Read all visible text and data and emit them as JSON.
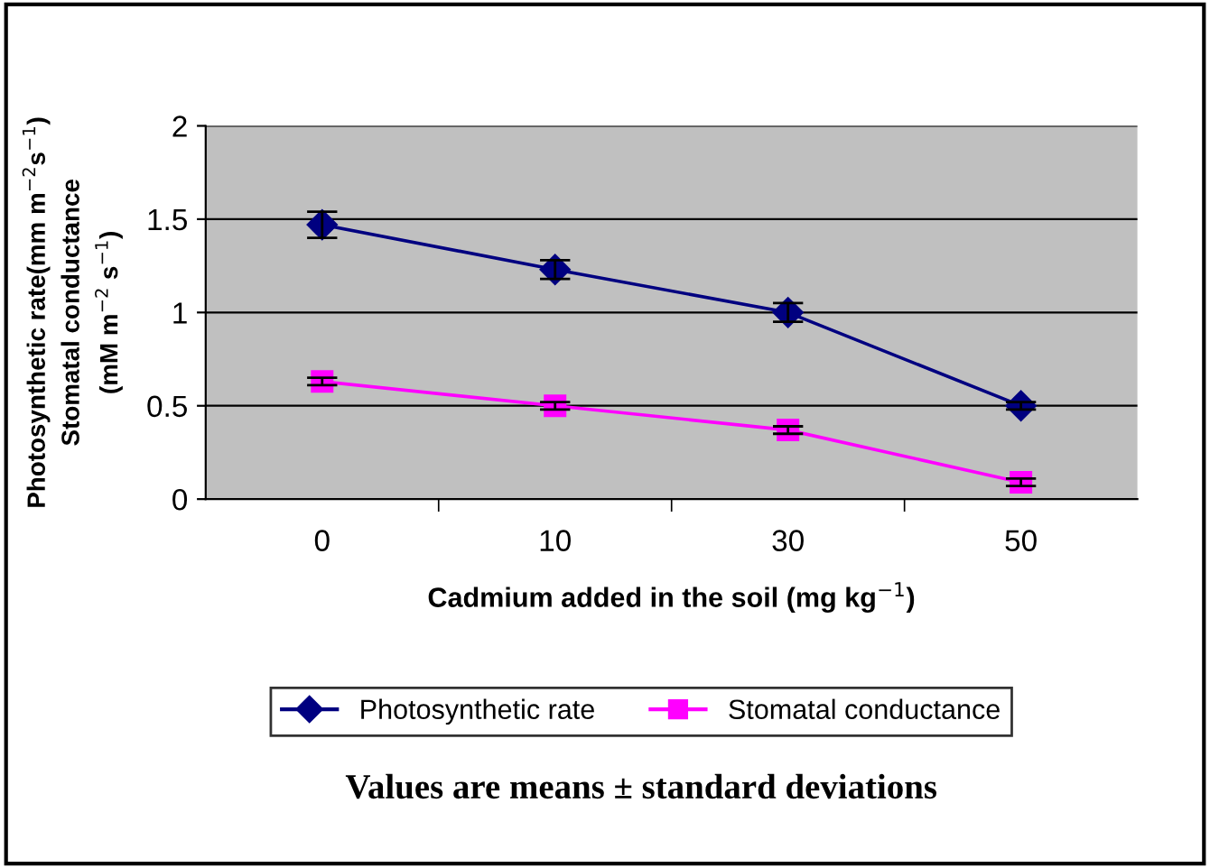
{
  "chart_data": {
    "type": "line",
    "xlabel": "Cadmium added in the soil (mg kg$^{−1}$)",
    "ylabel": "Photosynthetic rate(mm m$^{−2}$s$^{−1}$)\nStomatal conductance\n(mM m$^{−2}$ s$^{−1}$)",
    "categories": [
      "0",
      "10",
      "30",
      "50"
    ],
    "series": [
      {
        "name": "Photosynthetic rate",
        "color": "#000080",
        "marker": "diamond",
        "values": [
          1.47,
          1.23,
          1.0,
          0.5
        ],
        "errors": [
          0.07,
          0.05,
          0.05,
          0.02
        ]
      },
      {
        "name": "Stomatal conductance",
        "color": "#ff00ff",
        "marker": "square",
        "values": [
          0.63,
          0.5,
          0.37,
          0.09
        ],
        "errors": [
          0.02,
          0.02,
          0.02,
          0.02
        ]
      }
    ],
    "ylim": [
      0,
      2
    ],
    "yticks": [
      0,
      0.5,
      1,
      1.5,
      2
    ],
    "grid": "y",
    "legend": "bottom",
    "line_style": "solid",
    "annotations": [
      "Values are means ± standard deviations"
    ]
  }
}
